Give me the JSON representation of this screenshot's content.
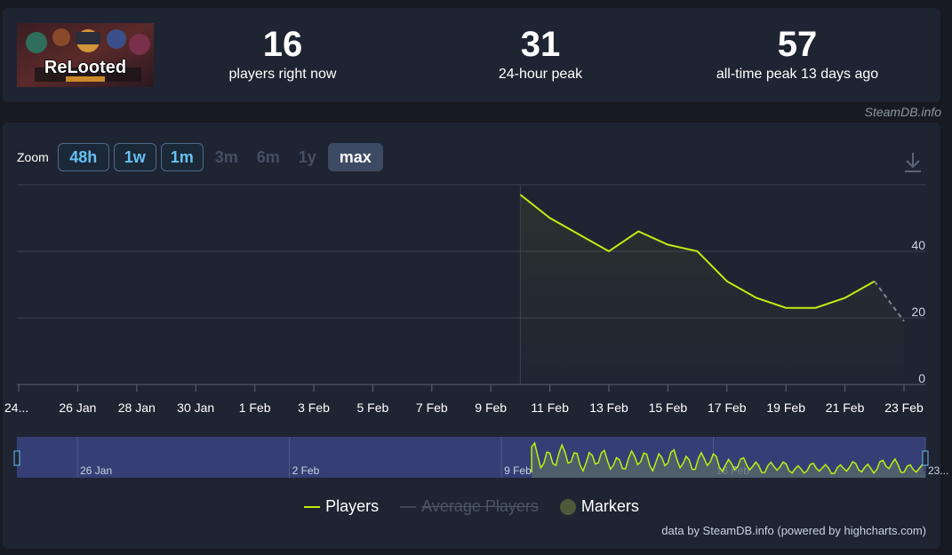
{
  "stats": [
    {
      "value": "16",
      "label": "players right now"
    },
    {
      "value": "31",
      "label": "24-hour peak"
    },
    {
      "value": "57",
      "label": "all-time peak 13 days ago"
    }
  ],
  "game": {
    "logo_text": "ReLooted"
  },
  "site_credit": "SteamDB.info",
  "zoom": {
    "label": "Zoom",
    "buttons": [
      {
        "label": "48h",
        "state": "on"
      },
      {
        "label": "1w",
        "state": "on"
      },
      {
        "label": "1m",
        "state": "on"
      },
      {
        "label": "3m",
        "state": "off"
      },
      {
        "label": "6m",
        "state": "off"
      },
      {
        "label": "1y",
        "state": "off"
      },
      {
        "label": "max",
        "state": "sel"
      }
    ]
  },
  "legend": {
    "players": "Players",
    "average": "Average Players",
    "markers": "Markers"
  },
  "footer_credit": "data by SteamDB.info (powered by highcharts.com)",
  "colors": {
    "players": "#beee11",
    "average": "#4a5566",
    "markers": "#4c5a3a",
    "background": "#1f2432"
  },
  "chart_data": {
    "type": "line",
    "title": "",
    "xlabel": "",
    "ylabel": "",
    "ylim": [
      0,
      60
    ],
    "yticks": [
      0,
      20,
      40
    ],
    "y_axis_side": "right",
    "grid": true,
    "legend_position": "bottom",
    "x_tick_labels": [
      "24...",
      "26 Jan",
      "28 Jan",
      "30 Jan",
      "1 Feb",
      "3 Feb",
      "5 Feb",
      "7 Feb",
      "9 Feb",
      "11 Feb",
      "13 Feb",
      "15 Feb",
      "17 Feb",
      "19 Feb",
      "21 Feb",
      "23 Feb"
    ],
    "series": [
      {
        "name": "Players",
        "x": [
          "2025-02-10",
          "2025-02-11",
          "2025-02-12",
          "2025-02-13",
          "2025-02-14",
          "2025-02-15",
          "2025-02-16",
          "2025-02-17",
          "2025-02-18",
          "2025-02-19",
          "2025-02-20",
          "2025-02-21",
          "2025-02-22"
        ],
        "values": [
          57,
          50,
          45,
          40,
          46,
          42,
          40,
          31,
          26,
          23,
          23,
          26,
          31
        ],
        "partial_point": {
          "x": "2025-02-23",
          "value": 19
        }
      }
    ],
    "navigator": {
      "tick_labels": [
        "26 Jan",
        "2 Feb",
        "9 Feb",
        "16 Feb",
        "23..."
      ]
    }
  }
}
